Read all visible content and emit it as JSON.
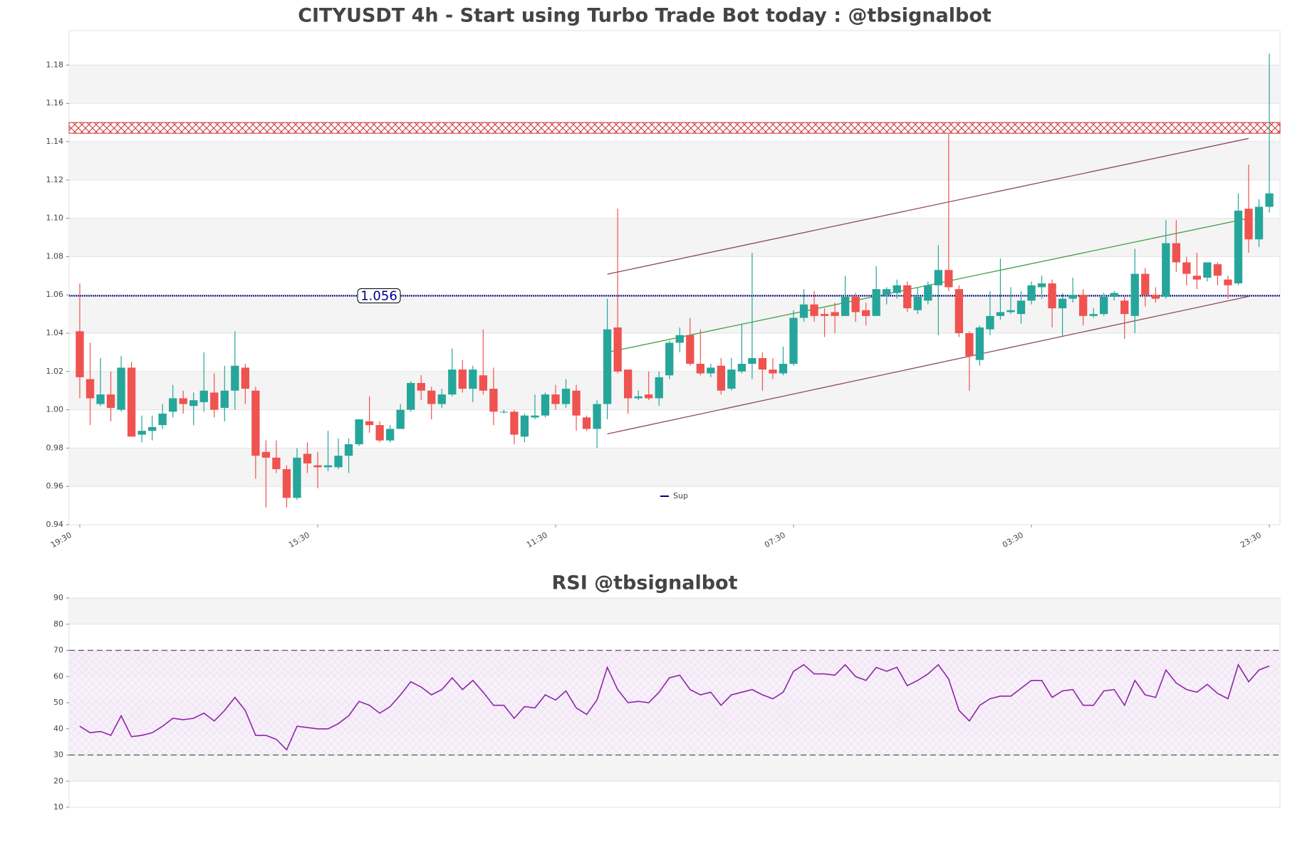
{
  "chart_data": [
    {
      "type": "candlestick",
      "title": "CITYUSDT 4h - Start using Turbo Trade Bot today : @tbsignalbot",
      "categories": [
        "19:30",
        null,
        null,
        null,
        null,
        null,
        null,
        null,
        null,
        null,
        null,
        null,
        null,
        null,
        null,
        null,
        null,
        null,
        null,
        null,
        null,
        null,
        null,
        "15:30",
        null,
        null,
        null,
        null,
        null,
        null,
        null,
        null,
        null,
        null,
        null,
        null,
        null,
        null,
        null,
        null,
        null,
        null,
        null,
        null,
        null,
        null,
        "11:30",
        null,
        null,
        null,
        null,
        null,
        null,
        null,
        null,
        null,
        null,
        null,
        null,
        null,
        null,
        null,
        null,
        null,
        null,
        null,
        null,
        null,
        null,
        "07:30",
        null,
        null,
        null,
        null,
        null,
        null,
        null,
        null,
        null,
        null,
        null,
        null,
        null,
        null,
        null,
        null,
        null,
        null,
        null,
        null,
        null,
        null,
        "03:30",
        null,
        null,
        null,
        null,
        null,
        null,
        null,
        null,
        null,
        null,
        null,
        null,
        null,
        null,
        null,
        null,
        null,
        null,
        null,
        null,
        null,
        null,
        "23:30"
      ],
      "open": [
        1.041,
        1.016,
        1.003,
        1.008,
        1.0,
        1.022,
        0.987,
        0.989,
        0.992,
        0.999,
        1.006,
        1.002,
        1.004,
        1.009,
        1.001,
        1.01,
        1.022,
        1.01,
        0.978,
        0.975,
        0.969,
        0.954,
        0.977,
        0.971,
        0.97,
        0.97,
        0.976,
        0.982,
        0.994,
        0.992,
        0.984,
        0.99,
        1.0,
        1.014,
        1.01,
        1.003,
        1.008,
        1.021,
        1.011,
        1.018,
        1.011,
        0.999,
        0.999,
        0.986,
        0.996,
        0.997,
        1.008,
        1.003,
        1.01,
        0.996,
        0.99,
        1.003,
        1.043,
        1.021,
        1.006,
        1.008,
        1.006,
        1.018,
        1.035,
        1.039,
        1.024,
        1.019,
        1.023,
        1.011,
        1.02,
        1.024,
        1.027,
        1.021,
        1.019,
        1.024,
        1.048,
        1.055,
        1.05,
        1.051,
        1.049,
        1.059,
        1.052,
        1.049,
        1.06,
        1.061,
        1.065,
        1.052,
        1.057,
        1.065,
        1.073,
        1.063,
        1.04,
        1.026,
        1.042,
        1.049,
        1.051,
        1.05,
        1.057,
        1.064,
        1.066,
        1.053,
        1.058,
        1.06,
        1.049,
        1.05,
        1.059,
        1.057,
        1.049,
        1.071,
        1.06,
        1.059,
        1.087,
        1.077,
        1.07,
        1.069,
        1.076,
        1.068,
        1.066,
        1.105,
        1.089,
        1.106
      ],
      "high": [
        1.066,
        1.035,
        1.027,
        1.02,
        1.028,
        1.025,
        0.997,
        0.997,
        1.003,
        1.013,
        1.01,
        1.009,
        1.03,
        1.019,
        1.023,
        1.041,
        1.024,
        1.012,
        0.984,
        0.984,
        0.971,
        0.98,
        0.983,
        0.978,
        0.989,
        0.985,
        0.985,
        0.995,
        1.007,
        0.994,
        0.992,
        1.003,
        1.015,
        1.018,
        1.012,
        1.011,
        1.032,
        1.026,
        1.023,
        1.042,
        1.022,
        1.0,
        1.0,
        0.998,
        1.008,
        1.009,
        1.013,
        1.016,
        1.013,
        0.997,
        1.005,
        1.058,
        1.105,
        1.021,
        1.01,
        1.02,
        1.02,
        1.036,
        1.043,
        1.048,
        1.042,
        1.024,
        1.027,
        1.027,
        1.045,
        1.082,
        1.03,
        1.027,
        1.033,
        1.052,
        1.063,
        1.062,
        1.053,
        1.056,
        1.07,
        1.061,
        1.056,
        1.075,
        1.064,
        1.068,
        1.067,
        1.064,
        1.067,
        1.086,
        1.144,
        1.065,
        1.041,
        1.044,
        1.062,
        1.079,
        1.064,
        1.062,
        1.067,
        1.07,
        1.068,
        1.061,
        1.069,
        1.063,
        1.053,
        1.061,
        1.062,
        1.059,
        1.084,
        1.074,
        1.064,
        1.099,
        1.099,
        1.08,
        1.082,
        1.077,
        1.077,
        1.07,
        1.113,
        1.128,
        1.11,
        1.186
      ],
      "low": [
        1.006,
        0.992,
        1.002,
        0.994,
        0.999,
        0.986,
        0.983,
        0.984,
        0.99,
        0.996,
        0.998,
        0.992,
        0.999,
        0.996,
        0.994,
        1.0,
        1.003,
        0.964,
        0.949,
        0.967,
        0.949,
        0.953,
        0.967,
        0.959,
        0.968,
        0.969,
        0.967,
        0.981,
        0.988,
        0.983,
        0.983,
        0.99,
        0.999,
        1.005,
        0.995,
        1.001,
        1.007,
        1.009,
        1.004,
        1.008,
        0.992,
        0.998,
        0.982,
        0.983,
        0.995,
        0.996,
        1.0,
        1.001,
        0.989,
        0.989,
        0.98,
        0.995,
        1.019,
        0.998,
        1.005,
        1.005,
        1.002,
        1.016,
        1.03,
        1.023,
        1.018,
        1.017,
        1.008,
        1.01,
        1.019,
        1.016,
        1.01,
        1.016,
        1.018,
        1.023,
        1.046,
        1.046,
        1.038,
        1.04,
        1.049,
        1.046,
        1.044,
        1.049,
        1.055,
        1.058,
        1.051,
        1.05,
        1.055,
        1.039,
        1.062,
        1.038,
        1.01,
        1.023,
        1.039,
        1.047,
        1.05,
        1.045,
        1.055,
        1.058,
        1.043,
        1.038,
        1.056,
        1.044,
        1.048,
        1.049,
        1.057,
        1.037,
        1.04,
        1.054,
        1.056,
        1.058,
        1.072,
        1.065,
        1.063,
        1.067,
        1.065,
        1.058,
        1.065,
        1.082,
        1.085,
        1.103
      ],
      "close": [
        1.017,
        1.006,
        1.008,
        1.001,
        1.022,
        0.986,
        0.989,
        0.991,
        0.998,
        1.006,
        1.003,
        1.005,
        1.01,
        1.0,
        1.01,
        1.023,
        1.011,
        0.976,
        0.975,
        0.969,
        0.954,
        0.975,
        0.972,
        0.97,
        0.971,
        0.976,
        0.982,
        0.995,
        0.992,
        0.984,
        0.99,
        1.0,
        1.014,
        1.01,
        1.003,
        1.008,
        1.021,
        1.011,
        1.021,
        1.01,
        0.999,
        0.999,
        0.987,
        0.997,
        0.997,
        1.008,
        1.003,
        1.011,
        0.997,
        0.99,
        1.003,
        1.042,
        1.02,
        1.006,
        1.007,
        1.006,
        1.017,
        1.035,
        1.039,
        1.024,
        1.019,
        1.022,
        1.01,
        1.021,
        1.024,
        1.027,
        1.021,
        1.019,
        1.024,
        1.048,
        1.055,
        1.049,
        1.049,
        1.049,
        1.059,
        1.051,
        1.049,
        1.063,
        1.063,
        1.065,
        1.053,
        1.059,
        1.065,
        1.073,
        1.064,
        1.04,
        1.028,
        1.043,
        1.049,
        1.051,
        1.052,
        1.057,
        1.065,
        1.066,
        1.053,
        1.058,
        1.06,
        1.049,
        1.05,
        1.059,
        1.061,
        1.05,
        1.071,
        1.06,
        1.058,
        1.087,
        1.077,
        1.071,
        1.068,
        1.077,
        1.07,
        1.065,
        1.104,
        1.089,
        1.106,
        1.113
      ],
      "up_color": "#26a69a",
      "down_color": "#ef5350",
      "ylim": [
        0.94,
        1.198
      ],
      "yticks": [
        0.94,
        0.96,
        0.98,
        {
          "value": 1,
          "label": "1.00"
        },
        1.02,
        1.04,
        1.06,
        1.08,
        {
          "value": 1.1,
          "label": "1.10"
        },
        1.12,
        1.14,
        1.16,
        1.18
      ],
      "grid": true,
      "support": {
        "name": "Sup",
        "value": 1.0595,
        "color": "#00008b"
      },
      "price_label": "1.056",
      "resistance_zone": {
        "low": 1.1444,
        "high": 1.15,
        "color": "#d32f2f"
      },
      "trend_lines": [
        {
          "start": 51,
          "end": 113,
          "from": 1.0708,
          "to": 1.1417,
          "color": "#8d4a5a"
        },
        {
          "start": 51,
          "end": 113,
          "from": 0.9874,
          "to": 1.0592,
          "color": "#8d4a5a"
        },
        {
          "start": 51,
          "end": 113,
          "from": 1.03,
          "to": 1.1,
          "color": "#43a047"
        }
      ],
      "legend": "lower center"
    },
    {
      "type": "line",
      "title": "RSI @tbsignalbot",
      "series": [
        {
          "color": "#8e24aa",
          "values": [
            41,
            38.5,
            39,
            37.5,
            45,
            37,
            37.5,
            38.5,
            41,
            44,
            43.5,
            44,
            46,
            43,
            47,
            52,
            47,
            37.5,
            37.5,
            36,
            32,
            41,
            40.5,
            40,
            40,
            42,
            45,
            50.5,
            49,
            46,
            48.5,
            53,
            58,
            56,
            53,
            55,
            59.5,
            55,
            58.5,
            54,
            49,
            49,
            44,
            48.5,
            48,
            53,
            51,
            54.5,
            48,
            45.5,
            51,
            63.5,
            55,
            50,
            50.5,
            50,
            54,
            59.5,
            60.5,
            55,
            53,
            54,
            49,
            53,
            54,
            55,
            53,
            51.5,
            54,
            62,
            64.5,
            61,
            61,
            60.5,
            64.5,
            60,
            58.5,
            63.5,
            62,
            63.5,
            56.5,
            58.5,
            61,
            64.5,
            59,
            47,
            43,
            49,
            51.5,
            52.5,
            52.5,
            55.5,
            58.5,
            58.5,
            52,
            54.5,
            55,
            49,
            49,
            54.5,
            55,
            49,
            58.5,
            53,
            52,
            62.5,
            57.5,
            55,
            54,
            57,
            53.5,
            51.5,
            64.5,
            58,
            62.5,
            64
          ]
        }
      ],
      "ylim": [
        10,
        90
      ],
      "yticks": [
        10,
        20,
        30,
        40,
        50,
        60,
        70,
        80,
        90
      ],
      "levels": [
        30,
        70
      ],
      "grid": true
    }
  ]
}
